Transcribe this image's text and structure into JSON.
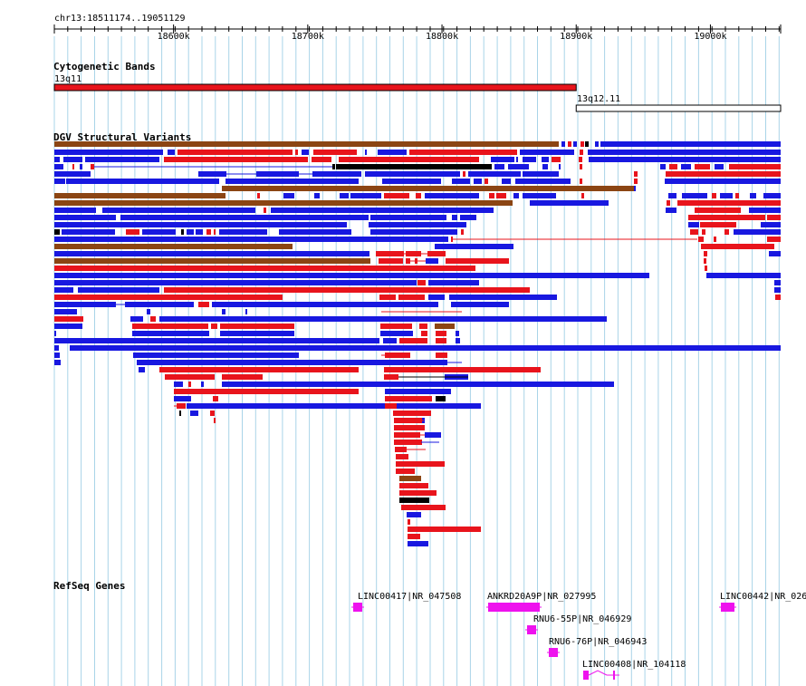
{
  "location": "chr13:18511174..19051129",
  "ruler": {
    "ticks": [
      {
        "label": "18600k",
        "pos": 18600000
      },
      {
        "label": "18700k",
        "pos": 18700000
      },
      {
        "label": "18800k",
        "pos": 18800000
      },
      {
        "label": "18900k",
        "pos": 18900000
      },
      {
        "label": "19000k",
        "pos": 19000000
      }
    ]
  },
  "tracks": {
    "cytoband": {
      "title": "Cytogenetic Bands",
      "bands": [
        {
          "name": "13q11",
          "start": 18511174,
          "end": 18900000,
          "color": "#e8141c"
        },
        {
          "name": "13q12.11",
          "start": 18900000,
          "end": 19051129,
          "color": "#ffffff"
        }
      ]
    },
    "dgv": {
      "title": "DGV Structural Variants",
      "colors": {
        "loss": "#e8141c",
        "gain": "#1818e0",
        "complex": "#8b4513",
        "inversion": "#000000"
      }
    },
    "refseq": {
      "title": "RefSeq Genes",
      "color": "#ee12ee",
      "genes": [
        {
          "label": "LINC00417|NR_047508",
          "start": 18733000,
          "end": 18740000
        },
        {
          "label": "ANKRD20A9P|NR_027995",
          "start": 18836000,
          "end": 18874000
        },
        {
          "label": "RNU6-55P|NR_046929",
          "start": 18862000,
          "end": 18865000
        },
        {
          "label": "RNU6-76P|NR_046943",
          "start": 18875000,
          "end": 18878000
        },
        {
          "label": "LINC00408|NR_104118",
          "start": 18900000,
          "end": 18932000
        },
        {
          "label": "LINC00442|NR_026",
          "start": 19011000,
          "end": 19020000
        }
      ]
    }
  }
}
